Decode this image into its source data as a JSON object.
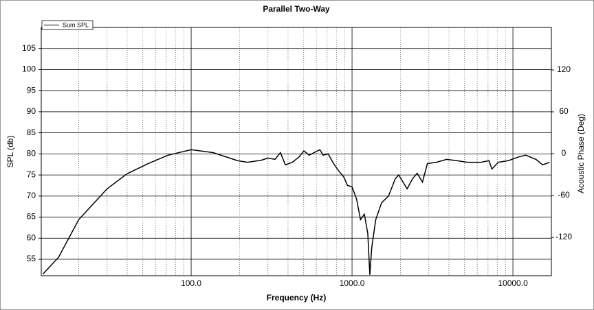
{
  "chart_data": {
    "type": "line",
    "title": "Parallel Two-Way",
    "x_label": "Frequency (Hz)",
    "y_label": "SPL (db)",
    "y2_label": "Acoustic Phase (Deg)",
    "xscale": "log",
    "xlim": [
      11.7,
      17340
    ],
    "ylim": [
      51.1,
      110
    ],
    "y2lim": [
      -175,
      181
    ],
    "xticks": [
      {
        "value": 100,
        "label": "100.0"
      },
      {
        "value": 1000,
        "label": "1000.0"
      },
      {
        "value": 10000,
        "label": "10000.0"
      }
    ],
    "xminorticks": [
      20,
      30,
      40,
      50,
      60,
      70,
      80,
      90,
      200,
      300,
      400,
      500,
      600,
      700,
      800,
      900,
      2000,
      3000,
      4000,
      5000,
      6000,
      7000,
      8000,
      9000
    ],
    "yticks": [
      55,
      60,
      65,
      70,
      75,
      80,
      85,
      90,
      95,
      100,
      105
    ],
    "y2ticks": [
      -120,
      -60,
      0,
      60,
      120
    ],
    "grid": true,
    "legend": "upper left",
    "x": [
      12,
      15,
      20,
      30,
      40,
      54,
      72,
      100,
      137,
      194,
      224,
      273,
      300,
      332,
      359,
      385,
      425,
      469,
      502,
      542,
      581,
      631,
      661,
      710,
      768,
      821,
      889,
      938,
      1000,
      1067,
      1129,
      1193,
      1253,
      1290,
      1327,
      1404,
      1526,
      1685,
      1857,
      1950,
      2200,
      2375,
      2540,
      2740,
      2940,
      3340,
      3870,
      4480,
      5200,
      6310,
      7100,
      7400,
      8100,
      9370,
      10890,
      12000,
      13900,
      15300,
      16900
    ],
    "series": [
      {
        "name": "Sum SPL",
        "color": "#000000",
        "values": [
          51.5,
          55.5,
          64.4,
          71.7,
          75.3,
          77.7,
          79.7,
          81,
          80.3,
          78.4,
          78,
          78.5,
          79,
          78.7,
          80.3,
          77.4,
          78,
          79.3,
          80.7,
          79.7,
          80.3,
          81,
          79.7,
          80,
          77.7,
          76.1,
          74.5,
          72.5,
          72.2,
          69.3,
          64.4,
          65.7,
          61.1,
          51.3,
          57.9,
          64.4,
          68.4,
          70,
          74.1,
          75,
          71.7,
          74.1,
          75.4,
          73.3,
          77.7,
          78,
          78.7,
          78.4,
          78,
          78,
          78.4,
          76.4,
          78,
          78.4,
          79.3,
          79.7,
          78.7,
          77.4,
          78
        ]
      }
    ]
  }
}
